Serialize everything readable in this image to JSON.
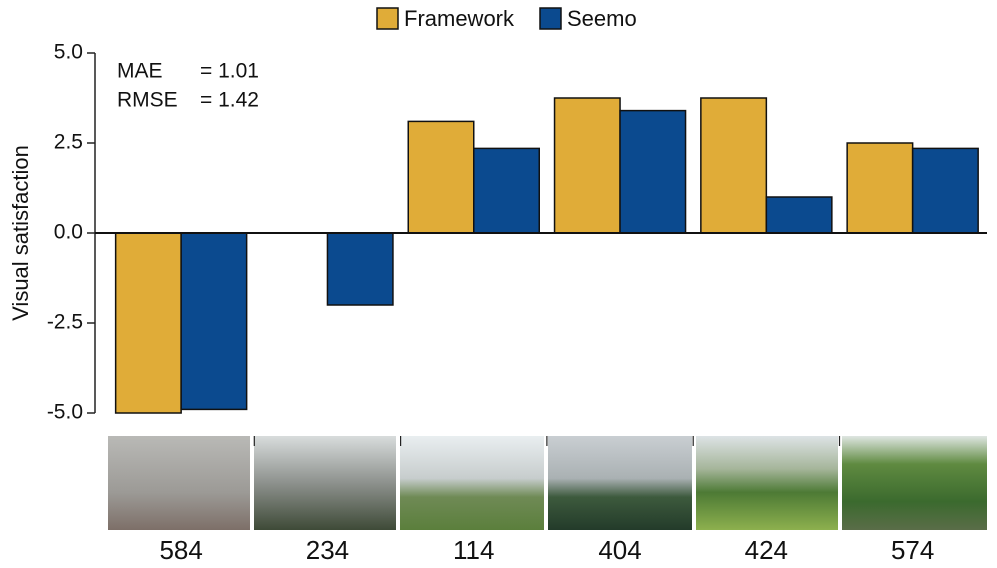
{
  "chart_data": {
    "type": "bar",
    "y_label": "Visual satisfaction",
    "categories": [
      "584",
      "234",
      "114",
      "404",
      "424",
      "574"
    ],
    "series": [
      {
        "name": "Framework",
        "color": "#e0ac38",
        "values": [
          -5.0,
          0,
          3.1,
          3.75,
          3.75,
          2.5
        ]
      },
      {
        "name": "Seemo",
        "color": "#0b4a8f",
        "values": [
          -4.9,
          -2.0,
          2.35,
          3.4,
          1.0,
          2.35
        ]
      }
    ],
    "ylim": [
      -5.0,
      5.0
    ],
    "yticks": [
      {
        "value": -5.0,
        "label": "-5.0"
      },
      {
        "value": -2.5,
        "label": "-2.5"
      },
      {
        "value": 0,
        "label": "0.0"
      },
      {
        "value": 2.5,
        "label": "2.5"
      },
      {
        "value": 5.0,
        "label": "5.0"
      }
    ],
    "annotations": [
      {
        "label": "MAE",
        "value": "= 1.01"
      },
      {
        "label": "RMSE",
        "value": "= 1.42"
      }
    ],
    "legend": "top"
  }
}
